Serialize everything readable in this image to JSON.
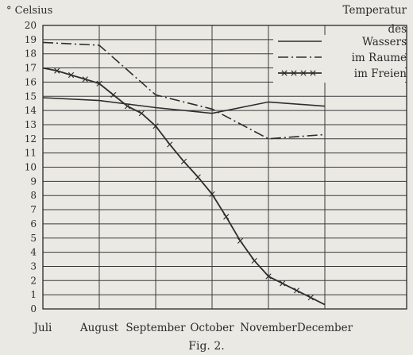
{
  "chart_data": {
    "type": "line",
    "title": "Temperatur des Wassers im Raume im Freien",
    "ylabel": "° Celsius",
    "caption": "Fig. 2.",
    "legend_title": [
      "Temperatur",
      "des"
    ],
    "legend_placement": "top-right",
    "categories": [
      "Juli",
      "August",
      "September",
      "October",
      "November",
      "December"
    ],
    "ylim": [
      0,
      20
    ],
    "yticks": [
      0,
      1,
      2,
      3,
      4,
      5,
      6,
      7,
      8,
      9,
      10,
      11,
      12,
      13,
      14,
      15,
      16,
      17,
      18,
      19,
      20
    ],
    "grid": true,
    "series": [
      {
        "name": "Wassers",
        "style": "solid",
        "points": [
          [
            0,
            14.9
          ],
          [
            1,
            14.7
          ],
          [
            2,
            14.2
          ],
          [
            3,
            13.8
          ],
          [
            4,
            14.6
          ],
          [
            5,
            14.3
          ]
        ]
      },
      {
        "name": "im Raume",
        "style": "dash-dot",
        "points": [
          [
            0,
            18.8
          ],
          [
            1,
            18.6
          ],
          [
            2,
            15.1
          ],
          [
            3,
            14.1
          ],
          [
            4,
            12.0
          ],
          [
            5,
            12.3
          ]
        ]
      },
      {
        "name": "im Freien",
        "style": "crosses",
        "points": [
          [
            0,
            17.0
          ],
          [
            0.25,
            16.8
          ],
          [
            0.5,
            16.5
          ],
          [
            0.75,
            16.2
          ],
          [
            1,
            15.9
          ],
          [
            1.25,
            15.1
          ],
          [
            1.5,
            14.3
          ],
          [
            1.75,
            13.8
          ],
          [
            2,
            12.9
          ],
          [
            2.25,
            11.6
          ],
          [
            2.5,
            10.4
          ],
          [
            2.75,
            9.3
          ],
          [
            3,
            8.1
          ],
          [
            3.25,
            6.5
          ],
          [
            3.5,
            4.8
          ],
          [
            3.75,
            3.4
          ],
          [
            4,
            2.3
          ],
          [
            4.25,
            1.8
          ],
          [
            4.5,
            1.3
          ],
          [
            4.75,
            0.8
          ],
          [
            5,
            0.3
          ]
        ]
      }
    ]
  }
}
